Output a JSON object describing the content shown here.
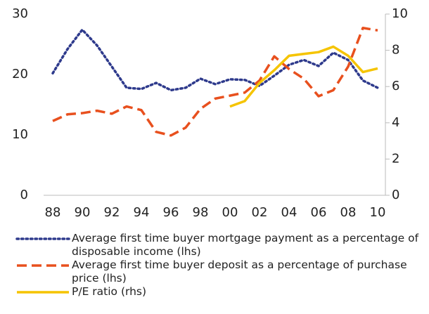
{
  "chart_data": {
    "type": "line",
    "categories": [
      "88",
      null,
      "90",
      null,
      "92",
      null,
      "94",
      null,
      "96",
      null,
      "98",
      null,
      "00",
      null,
      "02",
      null,
      "04",
      null,
      "06",
      null,
      "08",
      null,
      "10"
    ],
    "ylim": [
      0,
      30
    ],
    "yticks": [
      0,
      10,
      20,
      30
    ],
    "y2lim": [
      0,
      10
    ],
    "y2ticks": [
      0,
      2,
      4,
      6,
      8,
      10
    ],
    "series": [
      {
        "name": "Average first time buyer mortgage payment as a percentage of disposable income (lhs)",
        "color": "#2e3a8c",
        "style": "dotted",
        "values": [
          20.2,
          24.2,
          27.4,
          24.8,
          21.3,
          17.8,
          17.6,
          18.6,
          17.4,
          17.8,
          19.3,
          18.4,
          19.2,
          19.1,
          18.1,
          19.8,
          21.6,
          22.4,
          21.4,
          23.6,
          22.4,
          19.0,
          17.8
        ]
      },
      {
        "name": "Average first time buyer deposit as a percentage of purchase price (lhs)",
        "color": "#e8501e",
        "style": "dashed",
        "values": [
          12.3,
          13.4,
          13.6,
          14.0,
          13.5,
          14.7,
          14.1,
          10.5,
          9.9,
          11.2,
          14.3,
          16.0,
          16.5,
          17.0,
          19.0,
          23.0,
          20.9,
          19.3,
          16.4,
          17.4,
          21.3,
          27.7,
          27.3
        ]
      },
      {
        "name": "P/E ratio (rhs)",
        "color": "#f5c400",
        "style": "solid",
        "axis": "y2",
        "values": [
          null,
          null,
          null,
          null,
          null,
          null,
          null,
          null,
          null,
          null,
          null,
          null,
          4.9,
          5.2,
          6.2,
          6.9,
          7.7,
          7.8,
          7.9,
          8.2,
          7.7,
          6.8,
          7.0
        ]
      }
    ]
  }
}
